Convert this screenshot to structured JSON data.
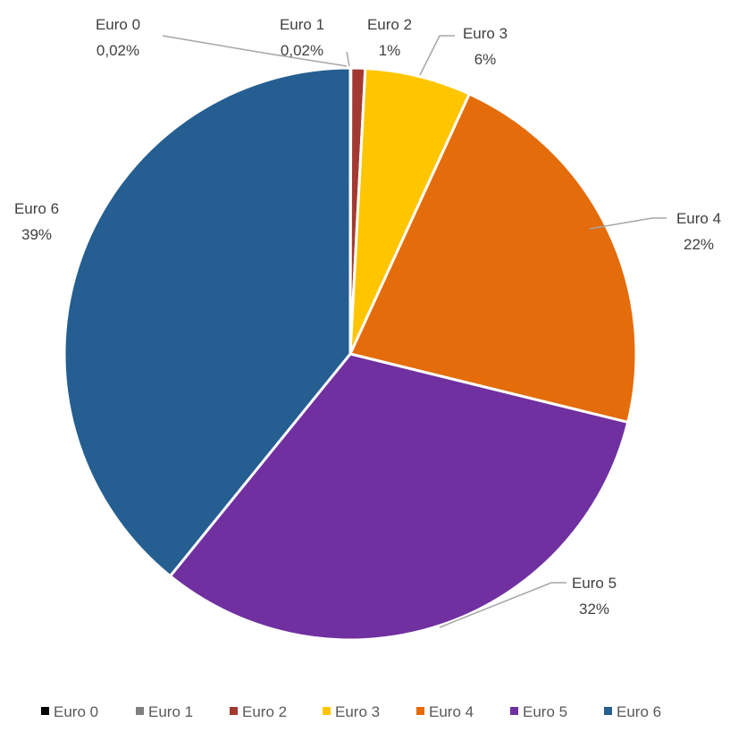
{
  "chart_data": {
    "type": "pie",
    "title": "",
    "slices": [
      {
        "name": "Euro 0",
        "value": 0.02,
        "label": "0,02%",
        "color": "#000000"
      },
      {
        "name": "Euro 1",
        "value": 0.02,
        "label": "0,02%",
        "color": "#7f7f7f"
      },
      {
        "name": "Euro 2",
        "value": 0.8,
        "label": "1%",
        "color": "#a33a32"
      },
      {
        "name": "Euro 3",
        "value": 6.0,
        "label": "6%",
        "color": "#ffc600"
      },
      {
        "name": "Euro 4",
        "value": 22.0,
        "label": "22%",
        "color": "#e46c0a"
      },
      {
        "name": "Euro 5",
        "value": 32.0,
        "label": "32%",
        "color": "#7030a0"
      },
      {
        "name": "Euro 6",
        "value": 39.16,
        "label": "39%",
        "color": "#255e91"
      }
    ],
    "legend": {
      "position": "bottom",
      "entries": [
        "Euro 0",
        "Euro 1",
        "Euro 2",
        "Euro 3",
        "Euro 4",
        "Euro 5",
        "Euro 6"
      ]
    },
    "leader_line_color": "#a6a6a6"
  }
}
